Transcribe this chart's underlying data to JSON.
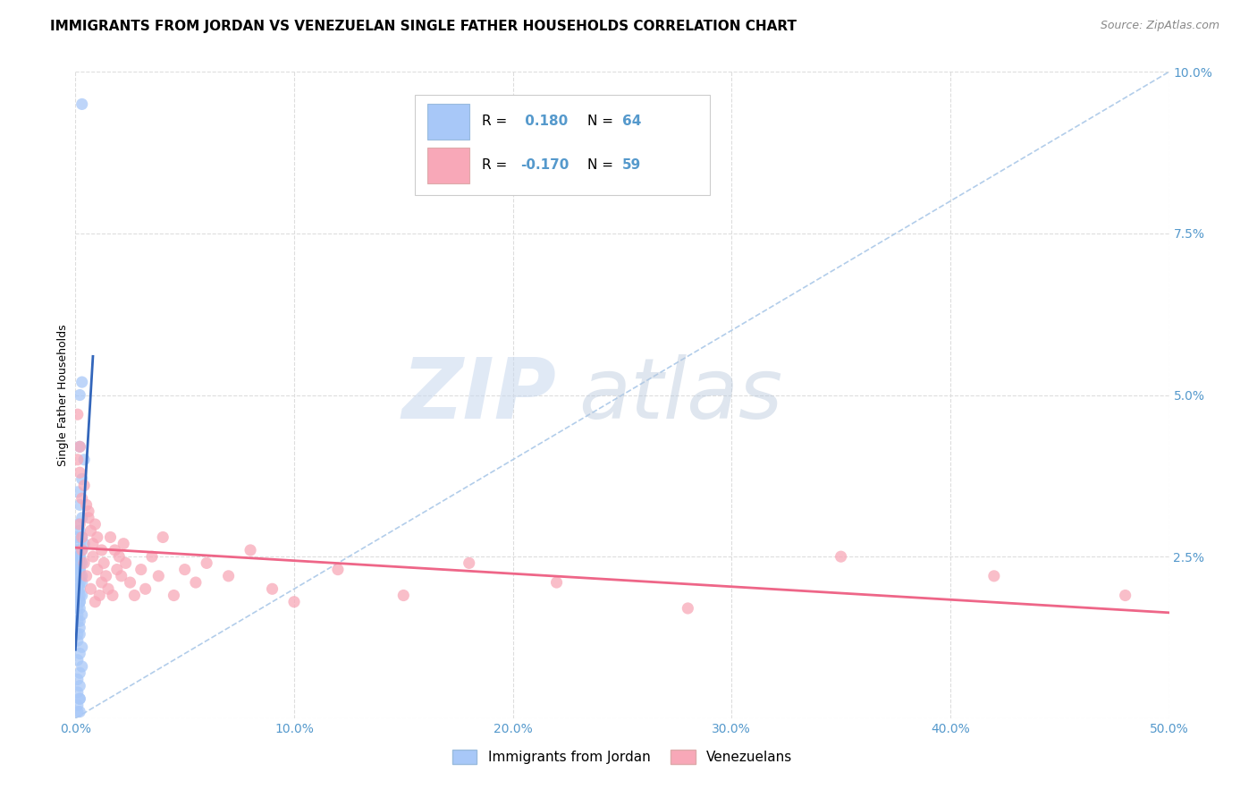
{
  "title": "IMMIGRANTS FROM JORDAN VS VENEZUELAN SINGLE FATHER HOUSEHOLDS CORRELATION CHART",
  "source": "Source: ZipAtlas.com",
  "ylabel": "Single Father Households",
  "xlim": [
    0.0,
    0.5
  ],
  "ylim": [
    0.0,
    0.1
  ],
  "xticks": [
    0.0,
    0.1,
    0.2,
    0.3,
    0.4,
    0.5
  ],
  "xticklabels": [
    "0.0%",
    "10.0%",
    "20.0%",
    "30.0%",
    "40.0%",
    "50.0%"
  ],
  "yticks": [
    0.0,
    0.025,
    0.05,
    0.075,
    0.1
  ],
  "yticklabels": [
    "",
    "2.5%",
    "5.0%",
    "7.5%",
    "10.0%"
  ],
  "color_jordan": "#a8c8f8",
  "color_venezuela": "#f8a8b8",
  "color_jordan_line": "#3366bb",
  "color_venezuela_line": "#ee6688",
  "color_diagonal": "#aac8e8",
  "background_color": "#ffffff",
  "grid_color": "#dddddd",
  "title_fontsize": 11,
  "axis_label_fontsize": 9,
  "tick_fontsize": 10,
  "tick_color": "#5599cc",
  "jordan_x": [
    0.003,
    0.003,
    0.002,
    0.002,
    0.004,
    0.003,
    0.001,
    0.002,
    0.003,
    0.001,
    0.002,
    0.001,
    0.003,
    0.004,
    0.002,
    0.003,
    0.001,
    0.002,
    0.001,
    0.002,
    0.002,
    0.003,
    0.001,
    0.002,
    0.001,
    0.002,
    0.003,
    0.001,
    0.002,
    0.001,
    0.002,
    0.003,
    0.001,
    0.002,
    0.001,
    0.002,
    0.003,
    0.001,
    0.002,
    0.001,
    0.002,
    0.001,
    0.002,
    0.001,
    0.003,
    0.002,
    0.001,
    0.002,
    0.001,
    0.002,
    0.001,
    0.003,
    0.002,
    0.001,
    0.003,
    0.002,
    0.001,
    0.002,
    0.001,
    0.002,
    0.002,
    0.001,
    0.002,
    0.001
  ],
  "jordan_y": [
    0.095,
    0.052,
    0.05,
    0.042,
    0.04,
    0.037,
    0.035,
    0.033,
    0.031,
    0.03,
    0.029,
    0.028,
    0.028,
    0.027,
    0.027,
    0.026,
    0.026,
    0.025,
    0.025,
    0.025,
    0.024,
    0.024,
    0.024,
    0.023,
    0.023,
    0.023,
    0.022,
    0.022,
    0.022,
    0.021,
    0.021,
    0.021,
    0.02,
    0.02,
    0.02,
    0.019,
    0.019,
    0.019,
    0.018,
    0.018,
    0.018,
    0.017,
    0.017,
    0.016,
    0.016,
    0.015,
    0.015,
    0.014,
    0.013,
    0.013,
    0.012,
    0.011,
    0.01,
    0.009,
    0.008,
    0.007,
    0.006,
    0.005,
    0.004,
    0.003,
    0.003,
    0.002,
    0.001,
    0.001
  ],
  "venezuela_x": [
    0.001,
    0.001,
    0.002,
    0.002,
    0.002,
    0.003,
    0.003,
    0.003,
    0.004,
    0.004,
    0.005,
    0.005,
    0.006,
    0.006,
    0.007,
    0.007,
    0.008,
    0.008,
    0.009,
    0.009,
    0.01,
    0.01,
    0.011,
    0.012,
    0.012,
    0.013,
    0.014,
    0.015,
    0.016,
    0.017,
    0.018,
    0.019,
    0.02,
    0.021,
    0.022,
    0.023,
    0.025,
    0.027,
    0.03,
    0.032,
    0.035,
    0.038,
    0.04,
    0.045,
    0.05,
    0.055,
    0.06,
    0.07,
    0.08,
    0.09,
    0.1,
    0.12,
    0.15,
    0.18,
    0.22,
    0.28,
    0.35,
    0.42,
    0.48
  ],
  "venezuela_y": [
    0.047,
    0.04,
    0.038,
    0.042,
    0.03,
    0.034,
    0.028,
    0.026,
    0.036,
    0.024,
    0.033,
    0.022,
    0.031,
    0.032,
    0.029,
    0.02,
    0.027,
    0.025,
    0.03,
    0.018,
    0.028,
    0.023,
    0.019,
    0.026,
    0.021,
    0.024,
    0.022,
    0.02,
    0.028,
    0.019,
    0.026,
    0.023,
    0.025,
    0.022,
    0.027,
    0.024,
    0.021,
    0.019,
    0.023,
    0.02,
    0.025,
    0.022,
    0.028,
    0.019,
    0.023,
    0.021,
    0.024,
    0.022,
    0.026,
    0.02,
    0.018,
    0.023,
    0.019,
    0.024,
    0.021,
    0.017,
    0.025,
    0.022,
    0.019
  ]
}
